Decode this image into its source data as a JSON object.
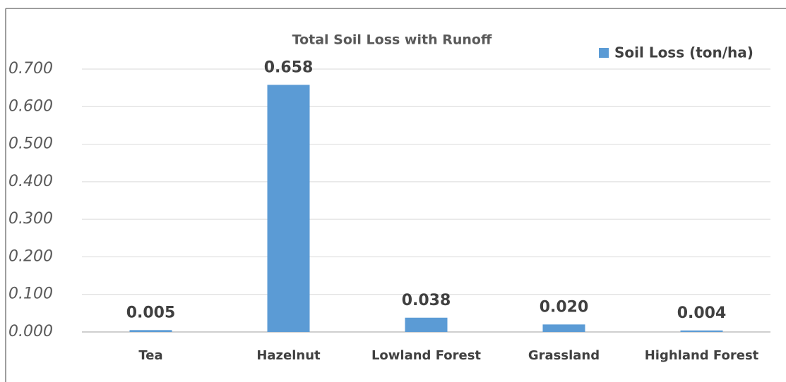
{
  "chart_data": {
    "type": "bar",
    "title": "Total Soil Loss with Runoff",
    "categories": [
      "Tea",
      "Hazelnut",
      "Lowland Forest",
      "Grassland",
      "Highland Forest"
    ],
    "series": [
      {
        "name": "Soil Loss (ton/ha)",
        "color": "#5b9bd5",
        "values": [
          0.005,
          0.658,
          0.038,
          0.02,
          0.004
        ],
        "value_labels": [
          "0.005",
          "0.658",
          "0.038",
          "0.020",
          "0.004"
        ]
      }
    ],
    "ylim": [
      0,
      0.7
    ],
    "yticks": [
      {
        "value": 0,
        "label": "0.000"
      },
      {
        "value": 0.1,
        "label": "0.100"
      },
      {
        "value": 0.2,
        "label": "0.200"
      },
      {
        "value": 0.3,
        "label": "0.300"
      },
      {
        "value": 0.4,
        "label": "0.400"
      },
      {
        "value": 0.5,
        "label": "0.500"
      },
      {
        "value": 0.6,
        "label": "0.600"
      },
      {
        "value": 0.7,
        "label": "0.700"
      }
    ],
    "grid": true,
    "legend": "top-right"
  }
}
